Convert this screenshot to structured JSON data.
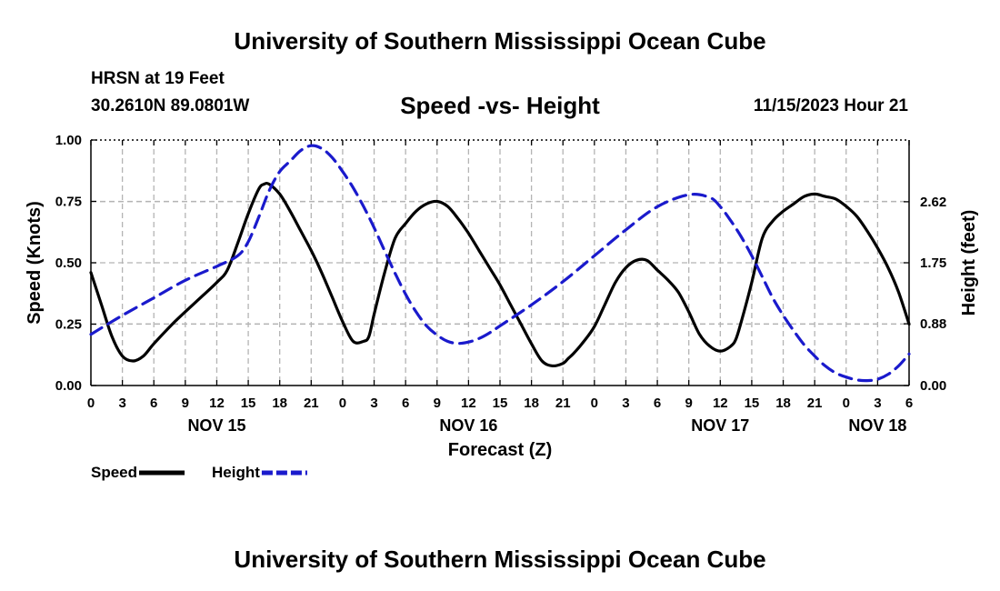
{
  "header": {
    "title": "University of Southern Mississippi Ocean Cube",
    "station": "HRSN at 19 Feet",
    "coords": "30.2610N  89.0801W",
    "subtitle": "Speed -vs- Height",
    "datetime": "11/15/2023 Hour 21"
  },
  "footer": {
    "title": "University of Southern Mississippi Ocean Cube"
  },
  "colors": {
    "speed": "#000000",
    "height": "#1a1acc",
    "grid": "#b4b4b4"
  },
  "chart_data": {
    "type": "line",
    "title": "Speed -vs- Height",
    "xlabel": "Forecast (Z)",
    "ylabel": "Speed (Knots)",
    "y2label": "Height (feet)",
    "xlim": [
      0,
      78
    ],
    "ylim": [
      0,
      1
    ],
    "y2lim": [
      0,
      3.5
    ],
    "grid": true,
    "legend_position": "bottom-left",
    "x_ticks": [
      0,
      3,
      6,
      9,
      12,
      15,
      18,
      21,
      24,
      27,
      30,
      33,
      36,
      39,
      42,
      45,
      48,
      51,
      54,
      57,
      60,
      63,
      66,
      69,
      72,
      75,
      78
    ],
    "x_tick_labels": [
      "0",
      "3",
      "6",
      "9",
      "12",
      "15",
      "18",
      "21",
      "0",
      "3",
      "6",
      "9",
      "12",
      "15",
      "18",
      "21",
      "0",
      "3",
      "6",
      "9",
      "12",
      "15",
      "18",
      "21",
      "0",
      "3",
      "6"
    ],
    "date_labels": [
      {
        "x": 12,
        "label": "NOV 15"
      },
      {
        "x": 36,
        "label": "NOV 16"
      },
      {
        "x": 60,
        "label": "NOV 17"
      },
      {
        "x": 75,
        "label": "NOV 18"
      }
    ],
    "y_ticks": [
      0,
      0.25,
      0.5,
      0.75,
      1.0
    ],
    "y_tick_labels": [
      "0.00",
      "0.25",
      "0.50",
      "0.75",
      "1.00"
    ],
    "y2_ticks": [
      0,
      0.88,
      1.75,
      2.62
    ],
    "y2_tick_labels": [
      "0.00",
      "0.88",
      "1.75",
      "2.62"
    ],
    "series": [
      {
        "name": "Speed",
        "axis": "left",
        "style": "solid",
        "x": [
          0,
          1,
          2,
          3,
          4,
          5,
          6,
          8,
          10,
          12,
          13,
          14,
          15,
          16,
          16.5,
          17,
          18,
          19,
          20,
          21,
          22,
          23,
          24,
          25,
          26,
          26.5,
          27,
          28,
          29,
          30,
          31,
          32,
          33,
          34,
          35,
          36,
          37,
          38,
          39,
          40,
          41,
          42,
          43,
          44,
          45,
          45.5,
          46,
          47,
          48,
          49,
          50,
          51,
          52,
          53,
          54,
          55,
          56,
          57,
          58,
          59,
          60,
          61,
          61.5,
          62,
          63,
          64,
          65,
          66,
          67,
          68,
          69,
          70,
          71,
          72,
          73,
          74,
          75,
          76,
          77,
          78
        ],
        "values": [
          0.46,
          0.33,
          0.2,
          0.12,
          0.1,
          0.12,
          0.17,
          0.26,
          0.34,
          0.42,
          0.47,
          0.58,
          0.7,
          0.8,
          0.82,
          0.82,
          0.78,
          0.71,
          0.63,
          0.55,
          0.46,
          0.36,
          0.26,
          0.18,
          0.18,
          0.2,
          0.29,
          0.46,
          0.6,
          0.66,
          0.71,
          0.74,
          0.75,
          0.73,
          0.68,
          0.62,
          0.55,
          0.48,
          0.41,
          0.33,
          0.25,
          0.17,
          0.1,
          0.08,
          0.09,
          0.11,
          0.13,
          0.18,
          0.24,
          0.33,
          0.42,
          0.48,
          0.51,
          0.51,
          0.47,
          0.43,
          0.38,
          0.3,
          0.21,
          0.16,
          0.14,
          0.16,
          0.19,
          0.26,
          0.42,
          0.6,
          0.67,
          0.71,
          0.74,
          0.77,
          0.78,
          0.77,
          0.76,
          0.73,
          0.69,
          0.63,
          0.56,
          0.48,
          0.38,
          0.25
        ]
      },
      {
        "name": "Height",
        "axis": "right",
        "style": "dashed",
        "x": [
          0,
          3,
          6,
          9,
          12,
          14,
          15,
          16,
          17,
          18,
          19,
          20,
          21,
          22,
          23,
          24,
          25,
          26,
          27,
          28,
          29,
          30,
          31,
          32,
          33,
          34,
          35,
          36,
          37,
          38,
          39,
          42,
          45,
          48,
          51,
          54,
          57,
          59,
          60,
          61,
          62,
          63,
          64,
          65,
          66,
          67,
          68,
          69,
          70,
          71,
          72,
          73,
          74,
          75,
          76,
          77,
          78
        ],
        "values": [
          0.73,
          1.0,
          1.25,
          1.5,
          1.7,
          1.85,
          2.05,
          2.4,
          2.78,
          3.05,
          3.2,
          3.35,
          3.42,
          3.38,
          3.25,
          3.05,
          2.82,
          2.55,
          2.25,
          1.92,
          1.6,
          1.3,
          1.05,
          0.85,
          0.72,
          0.63,
          0.6,
          0.62,
          0.67,
          0.75,
          0.85,
          1.15,
          1.48,
          1.85,
          2.22,
          2.55,
          2.72,
          2.68,
          2.55,
          2.35,
          2.12,
          1.85,
          1.55,
          1.25,
          1.0,
          0.78,
          0.58,
          0.42,
          0.28,
          0.18,
          0.12,
          0.08,
          0.07,
          0.09,
          0.16,
          0.28,
          0.45
        ]
      }
    ],
    "legend": [
      {
        "name": "Speed",
        "style": "solid"
      },
      {
        "name": "Height",
        "style": "dashed"
      }
    ]
  }
}
